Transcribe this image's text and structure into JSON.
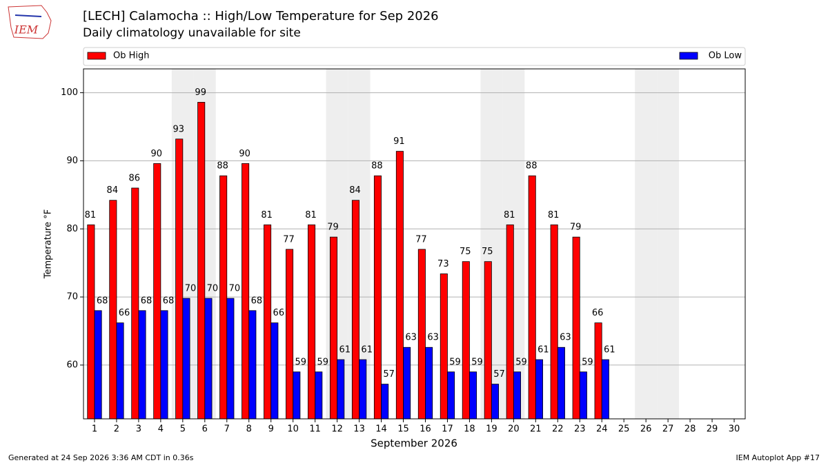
{
  "chart_data": {
    "type": "bar",
    "title": "[LECH] Calamocha :: High/Low Temperature for Sep 2026",
    "subtitle": "Daily climatology unavailable for site",
    "logo_text": "IEM",
    "ylabel": "Temperature °F",
    "xlabel": "September 2026",
    "footer_left": "Generated at 24 Sep 2026 3:36 AM CDT in 0.36s",
    "footer_right": "IEM Autoplot App #17",
    "categories": [
      1,
      2,
      3,
      4,
      5,
      6,
      7,
      8,
      9,
      10,
      11,
      12,
      13,
      14,
      15,
      16,
      17,
      18,
      19,
      20,
      21,
      22,
      23,
      24,
      25,
      26,
      27,
      28,
      29,
      30
    ],
    "shaded": [
      5,
      6,
      12,
      13,
      19,
      20,
      26,
      27
    ],
    "series": [
      {
        "name": "Ob High",
        "color": "#ff0000",
        "values": [
          80.6,
          84.2,
          86,
          89.6,
          93.2,
          98.6,
          87.8,
          89.6,
          80.6,
          77,
          80.6,
          78.8,
          84.2,
          87.8,
          91.4,
          77,
          73.4,
          75.2,
          75.2,
          80.6,
          87.8,
          80.6,
          78.8,
          66.2,
          null,
          null,
          null,
          null,
          null,
          null
        ],
        "value_labels": [
          "81",
          "84",
          "86",
          "90",
          "93",
          "99",
          "88",
          "90",
          "81",
          "77",
          "81",
          "79",
          "84",
          "88",
          "91",
          "77",
          "73",
          "75",
          "75",
          "81",
          "88",
          "81",
          "79",
          "66",
          null,
          null,
          null,
          null,
          null,
          null
        ]
      },
      {
        "name": "Ob Low",
        "color": "#0000ff",
        "values": [
          68,
          66.2,
          68,
          68,
          69.8,
          69.8,
          69.8,
          68,
          66.2,
          59,
          59,
          60.8,
          60.8,
          57.2,
          62.6,
          62.6,
          59,
          59,
          57.2,
          59,
          60.8,
          62.6,
          59,
          60.8,
          null,
          null,
          null,
          null,
          null,
          null
        ],
        "value_labels": [
          "68",
          "66",
          "68",
          "68",
          "70",
          "70",
          "70",
          "68",
          "66",
          "59",
          "59",
          "61",
          "61",
          "57",
          "63",
          "63",
          "59",
          "59",
          "57",
          "59",
          "61",
          "63",
          "59",
          "61",
          null,
          null,
          null,
          null,
          null,
          null
        ]
      }
    ],
    "ylim": [
      52.1,
      103.5
    ],
    "yticks": [
      60,
      70,
      80,
      90,
      100
    ],
    "grid": true
  }
}
